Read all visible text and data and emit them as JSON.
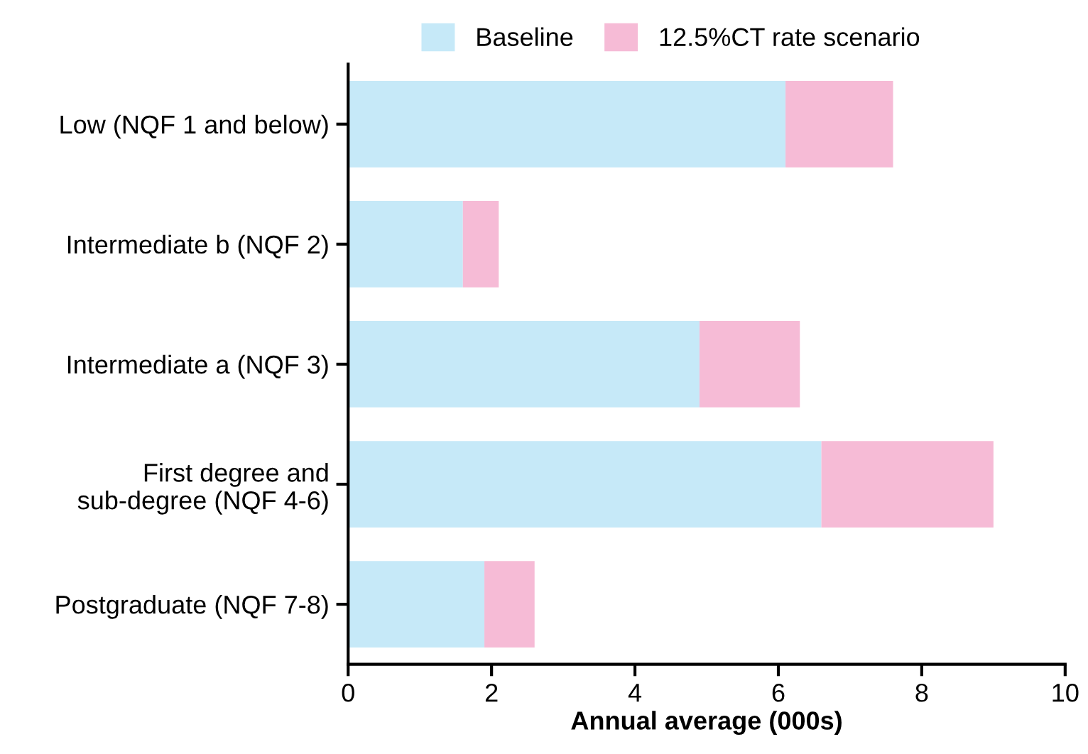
{
  "chart_data": {
    "type": "bar",
    "orientation": "horizontal",
    "stacked": true,
    "legend": "top",
    "grid": false,
    "xlabel": "Annual average (000s)",
    "categories": [
      "Low (NQF 1 and below)",
      "Intermediate b (NQF 2)",
      "Intermediate a (NQF 3)",
      "First degree and\nsub-degree (NQF 4-6)",
      "Postgraduate (NQF 7-8)"
    ],
    "series": [
      {
        "name": "Baseline",
        "color": "#c6e9f8",
        "values": [
          6.1,
          1.6,
          4.9,
          6.6,
          1.9
        ]
      },
      {
        "name": "12.5%CT rate scenario",
        "color": "#f6bbd6",
        "values": [
          1.5,
          0.5,
          1.4,
          2.4,
          0.7
        ]
      }
    ],
    "xlim": [
      0,
      10
    ],
    "xticks": [
      0,
      2,
      4,
      6,
      8,
      10
    ]
  }
}
